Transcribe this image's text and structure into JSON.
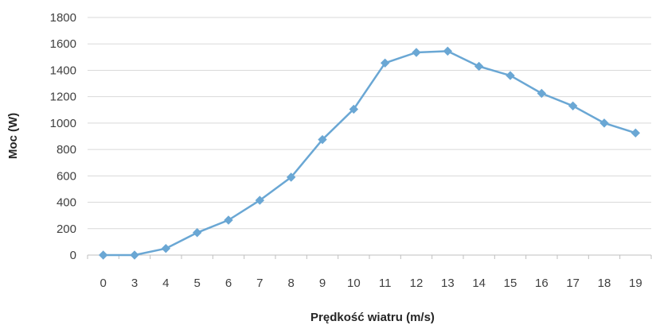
{
  "chart_data": {
    "type": "line",
    "title": "",
    "xlabel": "Prędkość wiatru (m/s)",
    "ylabel": "Moc (W)",
    "categories": [
      "0",
      "3",
      "4",
      "5",
      "6",
      "7",
      "8",
      "9",
      "10",
      "11",
      "12",
      "13",
      "14",
      "15",
      "16",
      "17",
      "18",
      "19"
    ],
    "series": [
      {
        "name": "",
        "values": [
          0,
          0,
          50,
          170,
          265,
          415,
          590,
          875,
          1105,
          1455,
          1535,
          1545,
          1430,
          1360,
          1225,
          1130,
          1000,
          925
        ],
        "color": "#6aa7d4",
        "marker": "diamond"
      }
    ],
    "ylim": [
      0,
      1800
    ],
    "yticks": [
      0,
      200,
      400,
      600,
      800,
      1000,
      1200,
      1400,
      1600,
      1800
    ],
    "grid": "horizontal",
    "legend": "none"
  }
}
